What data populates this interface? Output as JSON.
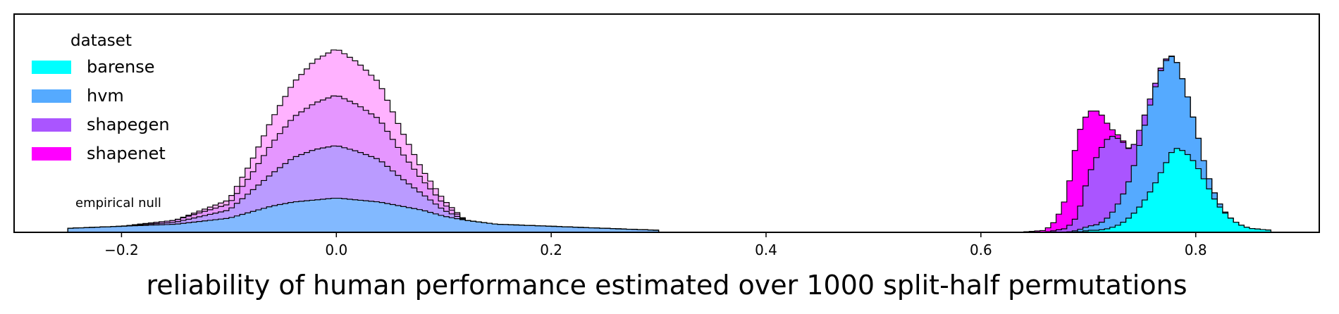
{
  "chart_data": {
    "type": "area",
    "xlabel": "reliability of human performance estimated over 1000 split-half permutations",
    "ylabel": "",
    "xlim": [
      -0.3,
      0.915
    ],
    "x_ticks": [
      -0.2,
      0.0,
      0.2,
      0.4,
      0.6,
      0.8
    ],
    "x_tick_labels": [
      "−0.2",
      "0.0",
      "0.2",
      "0.4",
      "0.6",
      "0.8"
    ],
    "grid": false,
    "stacked": true,
    "legend": {
      "title": "dataset",
      "position": "upper-left",
      "entries": [
        {
          "label": "barense",
          "color": "#00ffff"
        },
        {
          "label": "hvm",
          "color": "#55aaff"
        },
        {
          "label": "shapegen",
          "color": "#aa55ff"
        },
        {
          "label": "shapenet",
          "color": "#ff00ff"
        }
      ]
    },
    "annotation": "empirical null",
    "ylim": [
      0,
      1.08
    ],
    "bin_width": 0.005,
    "null_distribution": {
      "x": [
        -0.25,
        -0.2,
        -0.15,
        -0.1,
        -0.08,
        -0.06,
        -0.04,
        -0.02,
        0.0,
        0.02,
        0.04,
        0.06,
        0.08,
        0.1,
        0.12,
        0.15,
        0.2,
        0.25,
        0.3
      ],
      "series": [
        {
          "name": "barense",
          "values": [
            0.02,
            0.03,
            0.04,
            0.07,
            0.1,
            0.13,
            0.15,
            0.16,
            0.17,
            0.16,
            0.15,
            0.13,
            0.11,
            0.08,
            0.06,
            0.04,
            0.03,
            0.02,
            0.01
          ]
        },
        {
          "name": "hvm",
          "values": [
            0,
            0,
            0.01,
            0.04,
            0.1,
            0.16,
            0.22,
            0.25,
            0.26,
            0.24,
            0.21,
            0.14,
            0.08,
            0.03,
            0,
            0,
            0,
            0,
            0
          ]
        },
        {
          "name": "shapegen",
          "values": [
            0,
            0,
            0.01,
            0.03,
            0.08,
            0.15,
            0.2,
            0.23,
            0.25,
            0.23,
            0.2,
            0.13,
            0.07,
            0.03,
            0,
            0,
            0,
            0,
            0
          ]
        },
        {
          "name": "shapenet",
          "values": [
            0,
            0,
            0,
            0.02,
            0.06,
            0.12,
            0.17,
            0.21,
            0.23,
            0.21,
            0.18,
            0.11,
            0.05,
            0.02,
            0,
            0,
            0,
            0,
            0
          ]
        }
      ]
    },
    "observed_distribution": {
      "x": [
        0.635,
        0.66,
        0.67,
        0.68,
        0.69,
        0.7,
        0.71,
        0.72,
        0.73,
        0.74,
        0.75,
        0.76,
        0.77,
        0.78,
        0.79,
        0.8,
        0.81,
        0.82,
        0.83,
        0.84,
        0.85,
        0.87
      ],
      "series": [
        {
          "name": "barense",
          "values": [
            0,
            0,
            0,
            0,
            0,
            0.01,
            0.01,
            0.02,
            0.04,
            0.08,
            0.14,
            0.22,
            0.32,
            0.42,
            0.4,
            0.34,
            0.24,
            0.14,
            0.08,
            0.04,
            0.02,
            0.01
          ]
        },
        {
          "name": "hvm",
          "values": [
            0,
            0,
            0,
            0,
            0.01,
            0.02,
            0.03,
            0.06,
            0.12,
            0.2,
            0.34,
            0.46,
            0.52,
            0.46,
            0.32,
            0.18,
            0.06,
            0.02,
            0,
            0,
            0,
            0
          ]
        },
        {
          "name": "shapegen",
          "values": [
            0,
            0,
            0.01,
            0.02,
            0.07,
            0.25,
            0.36,
            0.4,
            0.3,
            0.12,
            0.06,
            0.02,
            0.01,
            0,
            0,
            0,
            0,
            0,
            0,
            0,
            0,
            0
          ]
        },
        {
          "name": "shapenet",
          "values": [
            0,
            0.01,
            0.05,
            0.16,
            0.4,
            0.32,
            0.2,
            0.04,
            0.01,
            0,
            0,
            0,
            0,
            0,
            0,
            0,
            0,
            0,
            0,
            0,
            0,
            0
          ]
        }
      ]
    }
  }
}
